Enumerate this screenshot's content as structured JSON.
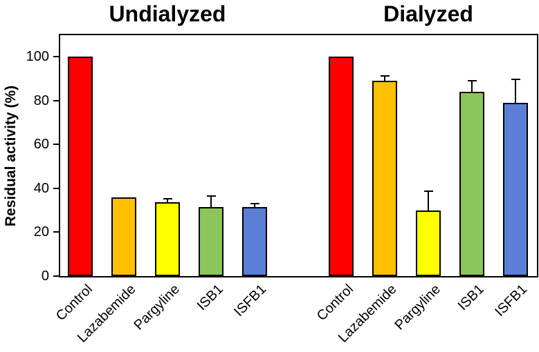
{
  "chart_data": {
    "type": "bar",
    "title": "",
    "ylabel": "Residual activity (%)",
    "xlabel": "",
    "ylim": [
      0,
      110
    ],
    "yticks": [
      0,
      20,
      40,
      60,
      80,
      100
    ],
    "grid": false,
    "legend": "none",
    "categories": [
      "Control",
      "Lazabemide",
      "Pargyline",
      "ISB1",
      "ISFB1"
    ],
    "bar_colors": [
      "#ff0000",
      "#ffc000",
      "#ffff00",
      "#8cc65b",
      "#5b7ed7"
    ],
    "bar_outline_color": "#000000",
    "error_bar_color": "#000000",
    "groups": [
      {
        "title": "Undialyzed",
        "values": [
          100,
          36,
          33.5,
          31.5,
          31.5
        ],
        "errors": [
          0,
          0,
          2,
          5.5,
          2
        ]
      },
      {
        "title": "Dialyzed",
        "values": [
          100,
          89,
          30,
          84,
          79
        ],
        "errors": [
          0,
          2.5,
          9,
          5.5,
          11
        ]
      }
    ]
  }
}
